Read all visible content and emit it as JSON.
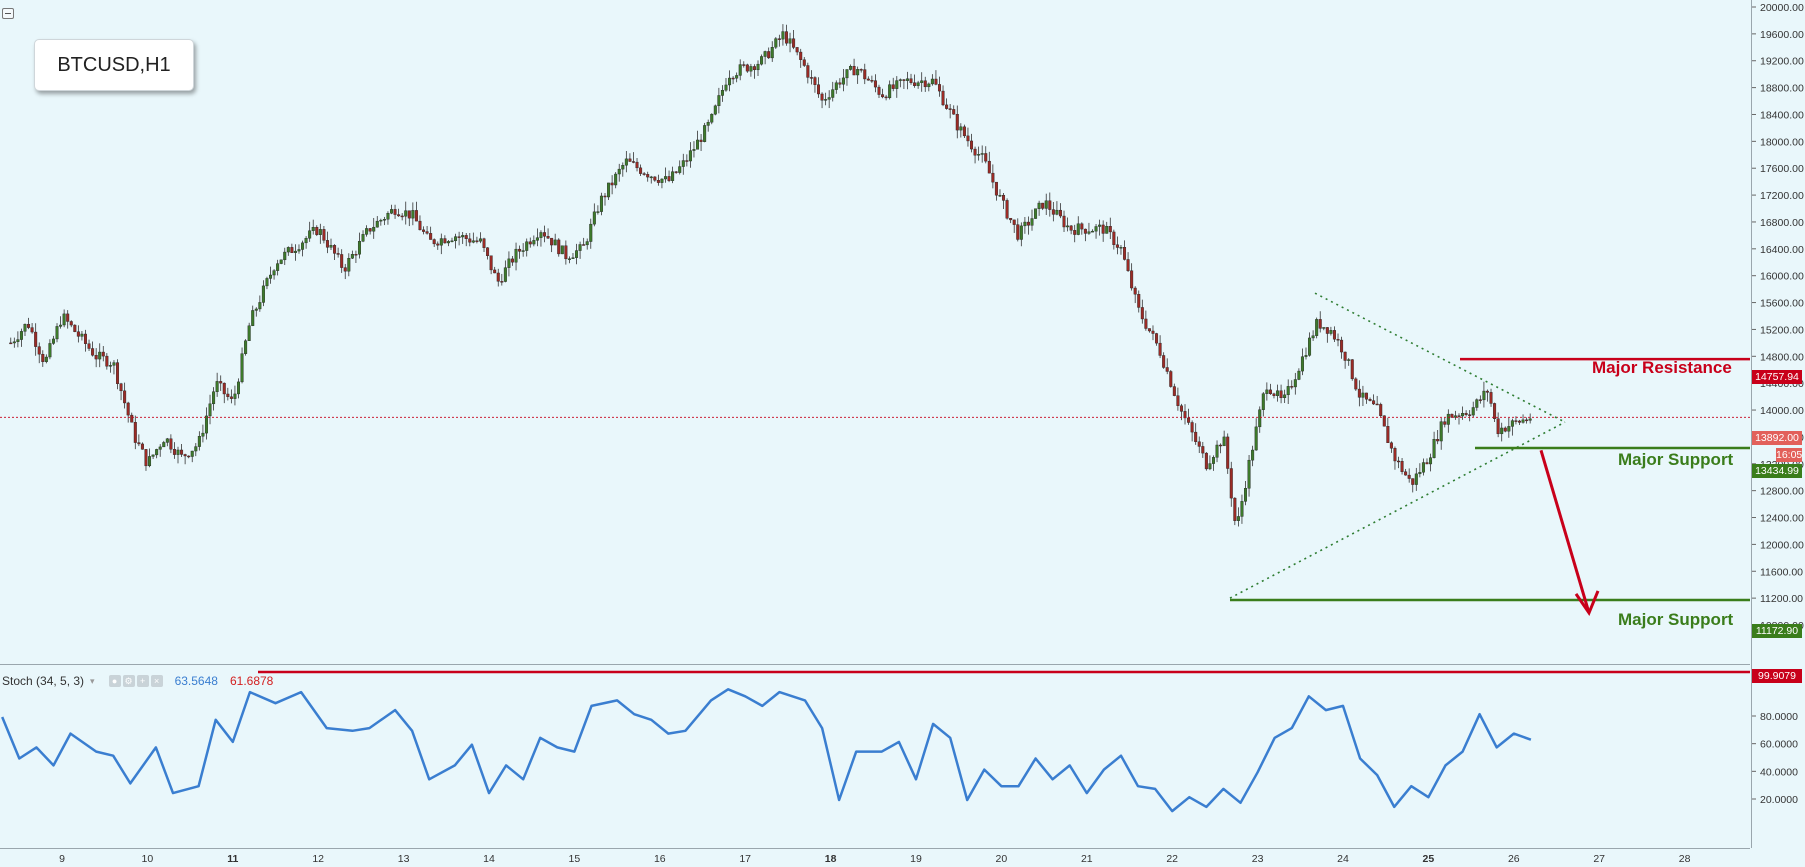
{
  "symbol": "BTCUSD,H1",
  "stoch": {
    "label": "Stoch (34, 5, 3)",
    "k_value": "63.5648",
    "d_value": "61.6878",
    "level": "99.9079"
  },
  "annotations": {
    "major_resistance": "Major Resistance",
    "major_support_1": "Major Support",
    "major_support_2": "Major Support"
  },
  "price_tags": {
    "resistance": "14757.94",
    "current": "13892.00",
    "countdown": "16:05",
    "support_1": "13434.99",
    "support_2": "11172.90"
  },
  "colors": {
    "background": "#e9f7fb",
    "bull_candle": "#3d7a2b",
    "bear_candle": "#9b2b26",
    "resistance": "#c8001a",
    "support": "#3a7d1b",
    "stoch_line": "#3a7ed0"
  },
  "chart_data": {
    "type": "candlestick",
    "price_axis_ticks": [
      "20000.00",
      "19600.00",
      "19200.00",
      "18800.00",
      "18400.00",
      "18000.00",
      "17600.00",
      "17200.00",
      "16800.00",
      "16400.00",
      "16000.00",
      "15600.00",
      "15200.00",
      "14800.00",
      "14400.00",
      "14000.00",
      "13600.00",
      "13200.00",
      "12800.00",
      "12400.00",
      "12000.00",
      "11600.00",
      "11200.00",
      "10800.00"
    ],
    "stoch_axis_ticks": [
      "80.0000",
      "60.0000",
      "40.0000",
      "20.0000"
    ],
    "time_axis_ticks": [
      "9",
      "10",
      "11",
      "12",
      "13",
      "14",
      "15",
      "16",
      "17",
      "18",
      "19",
      "20",
      "21",
      "22",
      "23",
      "24",
      "25",
      "26",
      "27",
      "28"
    ],
    "bold_time_ticks": [
      "11",
      "18",
      "25"
    ],
    "levels": {
      "major_resistance": 14757.94,
      "current_price": 13892.0,
      "major_support_1": 13434.99,
      "major_support_2": 11172.9
    },
    "price_path": [
      {
        "day": 8.4,
        "price": 15000
      },
      {
        "day": 8.6,
        "price": 15300
      },
      {
        "day": 8.8,
        "price": 14700
      },
      {
        "day": 9.0,
        "price": 15400
      },
      {
        "day": 9.2,
        "price": 15100
      },
      {
        "day": 9.4,
        "price": 14800
      },
      {
        "day": 9.6,
        "price": 14700
      },
      {
        "day": 9.85,
        "price": 13600
      },
      {
        "day": 10.0,
        "price": 13200
      },
      {
        "day": 10.2,
        "price": 13600
      },
      {
        "day": 10.4,
        "price": 13300
      },
      {
        "day": 10.6,
        "price": 13500
      },
      {
        "day": 10.8,
        "price": 14400
      },
      {
        "day": 11.0,
        "price": 14100
      },
      {
        "day": 11.2,
        "price": 15300
      },
      {
        "day": 11.5,
        "price": 16200
      },
      {
        "day": 11.8,
        "price": 16500
      },
      {
        "day": 12.0,
        "price": 16700
      },
      {
        "day": 12.3,
        "price": 16100
      },
      {
        "day": 12.6,
        "price": 16700
      },
      {
        "day": 12.9,
        "price": 17000
      },
      {
        "day": 13.1,
        "price": 16900
      },
      {
        "day": 13.3,
        "price": 16500
      },
      {
        "day": 13.6,
        "price": 16600
      },
      {
        "day": 13.9,
        "price": 16500
      },
      {
        "day": 14.1,
        "price": 15900
      },
      {
        "day": 14.3,
        "price": 16300
      },
      {
        "day": 14.6,
        "price": 16700
      },
      {
        "day": 14.9,
        "price": 16300
      },
      {
        "day": 15.1,
        "price": 16400
      },
      {
        "day": 15.3,
        "price": 17100
      },
      {
        "day": 15.6,
        "price": 17700
      },
      {
        "day": 15.9,
        "price": 17500
      },
      {
        "day": 16.1,
        "price": 17400
      },
      {
        "day": 16.3,
        "price": 17700
      },
      {
        "day": 16.6,
        "price": 18300
      },
      {
        "day": 16.8,
        "price": 19000
      },
      {
        "day": 17.0,
        "price": 19100
      },
      {
        "day": 17.2,
        "price": 19200
      },
      {
        "day": 17.45,
        "price": 19600
      },
      {
        "day": 17.7,
        "price": 19100
      },
      {
        "day": 17.9,
        "price": 18600
      },
      {
        "day": 18.1,
        "price": 18900
      },
      {
        "day": 18.3,
        "price": 19100
      },
      {
        "day": 18.6,
        "price": 18700
      },
      {
        "day": 18.9,
        "price": 18900
      },
      {
        "day": 19.2,
        "price": 18900
      },
      {
        "day": 19.5,
        "price": 18200
      },
      {
        "day": 19.8,
        "price": 17700
      },
      {
        "day": 20.0,
        "price": 17100
      },
      {
        "day": 20.2,
        "price": 16600
      },
      {
        "day": 20.5,
        "price": 17100
      },
      {
        "day": 20.8,
        "price": 16700
      },
      {
        "day": 21.0,
        "price": 16700
      },
      {
        "day": 21.2,
        "price": 16700
      },
      {
        "day": 21.4,
        "price": 16400
      },
      {
        "day": 21.6,
        "price": 15500
      },
      {
        "day": 21.85,
        "price": 14900
      },
      {
        "day": 22.1,
        "price": 14000
      },
      {
        "day": 22.4,
        "price": 13200
      },
      {
        "day": 22.6,
        "price": 13600
      },
      {
        "day": 22.75,
        "price": 12200
      },
      {
        "day": 22.9,
        "price": 13200
      },
      {
        "day": 23.1,
        "price": 14400
      },
      {
        "day": 23.3,
        "price": 14100
      },
      {
        "day": 23.5,
        "price": 14700
      },
      {
        "day": 23.7,
        "price": 15300
      },
      {
        "day": 23.85,
        "price": 15200
      },
      {
        "day": 24.0,
        "price": 14900
      },
      {
        "day": 24.2,
        "price": 14200
      },
      {
        "day": 24.4,
        "price": 14000
      },
      {
        "day": 24.6,
        "price": 13300
      },
      {
        "day": 24.8,
        "price": 12900
      },
      {
        "day": 25.0,
        "price": 13300
      },
      {
        "day": 25.2,
        "price": 13900
      },
      {
        "day": 25.5,
        "price": 14000
      },
      {
        "day": 25.7,
        "price": 14300
      },
      {
        "day": 25.8,
        "price": 13700
      },
      {
        "day": 26.0,
        "price": 13800
      },
      {
        "day": 26.2,
        "price": 13892
      }
    ],
    "stoch_path": [
      {
        "day": 8.3,
        "k": 80
      },
      {
        "day": 8.5,
        "k": 50
      },
      {
        "day": 8.7,
        "k": 58
      },
      {
        "day": 8.9,
        "k": 45
      },
      {
        "day": 9.1,
        "k": 68
      },
      {
        "day": 9.4,
        "k": 55
      },
      {
        "day": 9.6,
        "k": 52
      },
      {
        "day": 9.8,
        "k": 32
      },
      {
        "day": 10.1,
        "k": 58
      },
      {
        "day": 10.3,
        "k": 25
      },
      {
        "day": 10.6,
        "k": 30
      },
      {
        "day": 10.8,
        "k": 78
      },
      {
        "day": 11.0,
        "k": 62
      },
      {
        "day": 11.2,
        "k": 98
      },
      {
        "day": 11.5,
        "k": 90
      },
      {
        "day": 11.8,
        "k": 98
      },
      {
        "day": 12.1,
        "k": 72
      },
      {
        "day": 12.4,
        "k": 70
      },
      {
        "day": 12.6,
        "k": 72
      },
      {
        "day": 12.9,
        "k": 85
      },
      {
        "day": 13.1,
        "k": 70
      },
      {
        "day": 13.3,
        "k": 35
      },
      {
        "day": 13.6,
        "k": 45
      },
      {
        "day": 13.8,
        "k": 60
      },
      {
        "day": 14.0,
        "k": 25
      },
      {
        "day": 14.2,
        "k": 45
      },
      {
        "day": 14.4,
        "k": 35
      },
      {
        "day": 14.6,
        "k": 65
      },
      {
        "day": 14.8,
        "k": 58
      },
      {
        "day": 15.0,
        "k": 55
      },
      {
        "day": 15.2,
        "k": 88
      },
      {
        "day": 15.5,
        "k": 92
      },
      {
        "day": 15.7,
        "k": 82
      },
      {
        "day": 15.9,
        "k": 78
      },
      {
        "day": 16.1,
        "k": 68
      },
      {
        "day": 16.3,
        "k": 70
      },
      {
        "day": 16.6,
        "k": 92
      },
      {
        "day": 16.8,
        "k": 100
      },
      {
        "day": 17.0,
        "k": 95
      },
      {
        "day": 17.2,
        "k": 88
      },
      {
        "day": 17.4,
        "k": 98
      },
      {
        "day": 17.7,
        "k": 92
      },
      {
        "day": 17.9,
        "k": 72
      },
      {
        "day": 18.1,
        "k": 20
      },
      {
        "day": 18.3,
        "k": 55
      },
      {
        "day": 18.6,
        "k": 55
      },
      {
        "day": 18.8,
        "k": 62
      },
      {
        "day": 19.0,
        "k": 35
      },
      {
        "day": 19.2,
        "k": 75
      },
      {
        "day": 19.4,
        "k": 65
      },
      {
        "day": 19.6,
        "k": 20
      },
      {
        "day": 19.8,
        "k": 42
      },
      {
        "day": 20.0,
        "k": 30
      },
      {
        "day": 20.2,
        "k": 30
      },
      {
        "day": 20.4,
        "k": 50
      },
      {
        "day": 20.6,
        "k": 35
      },
      {
        "day": 20.8,
        "k": 45
      },
      {
        "day": 21.0,
        "k": 25
      },
      {
        "day": 21.2,
        "k": 42
      },
      {
        "day": 21.4,
        "k": 52
      },
      {
        "day": 21.6,
        "k": 30
      },
      {
        "day": 21.8,
        "k": 28
      },
      {
        "day": 22.0,
        "k": 12
      },
      {
        "day": 22.2,
        "k": 22
      },
      {
        "day": 22.4,
        "k": 15
      },
      {
        "day": 22.6,
        "k": 28
      },
      {
        "day": 22.8,
        "k": 18
      },
      {
        "day": 23.0,
        "k": 40
      },
      {
        "day": 23.2,
        "k": 65
      },
      {
        "day": 23.4,
        "k": 72
      },
      {
        "day": 23.6,
        "k": 95
      },
      {
        "day": 23.8,
        "k": 85
      },
      {
        "day": 24.0,
        "k": 88
      },
      {
        "day": 24.2,
        "k": 50
      },
      {
        "day": 24.4,
        "k": 38
      },
      {
        "day": 24.6,
        "k": 15
      },
      {
        "day": 24.8,
        "k": 30
      },
      {
        "day": 25.0,
        "k": 22
      },
      {
        "day": 25.2,
        "k": 45
      },
      {
        "day": 25.4,
        "k": 55
      },
      {
        "day": 25.6,
        "k": 82
      },
      {
        "day": 25.8,
        "k": 58
      },
      {
        "day": 26.0,
        "k": 68
      },
      {
        "day": 26.2,
        "k": 63.5648
      }
    ]
  }
}
